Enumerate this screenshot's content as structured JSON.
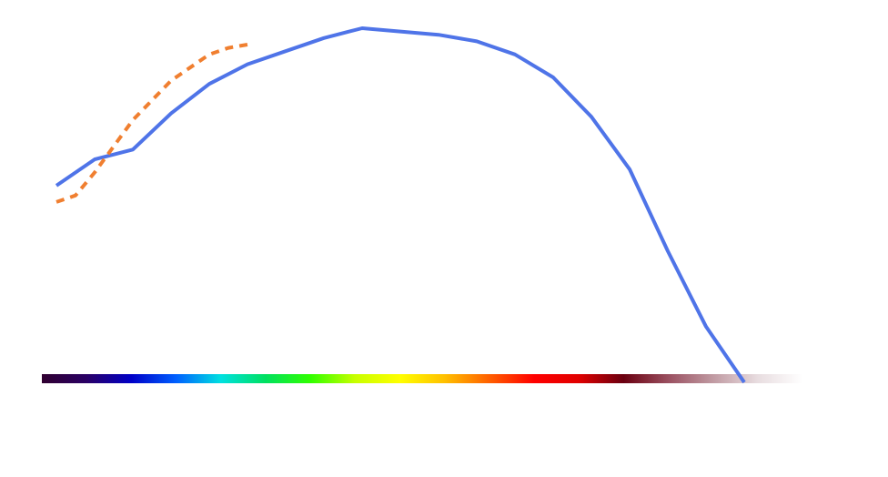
{
  "chart_data": {
    "type": "line",
    "title": "",
    "xlabel": "",
    "ylabel": "",
    "grid": false,
    "legend": "none",
    "colorbar": {
      "present": true,
      "orientation": "horizontal",
      "colors": [
        "#300030",
        "#2a0065",
        "#0000c8",
        "#0060ff",
        "#00e0e0",
        "#00e060",
        "#30ff00",
        "#c8ff00",
        "#ffff00",
        "#ffc000",
        "#ff6000",
        "#ff0000",
        "#e00000",
        "#6a0010",
        "#9a5060",
        "#c09aa2",
        "#e8dde0",
        "#ffffff"
      ]
    },
    "series": [
      {
        "color": "#4f74e8",
        "style": "solid",
        "x": [
          0,
          1,
          2,
          3,
          4,
          5,
          6,
          7,
          8,
          9,
          10,
          11,
          12,
          13,
          14,
          15,
          16,
          17,
          18
        ],
        "y": [
          0.6,
          0.68,
          0.71,
          0.82,
          0.91,
          0.97,
          1.01,
          1.05,
          1.08,
          1.07,
          1.06,
          1.04,
          1.0,
          0.93,
          0.81,
          0.65,
          0.4,
          0.17,
          0.0
        ]
      },
      {
        "color": "#f07f30",
        "style": "dashed",
        "x": [
          0,
          0.5,
          1,
          1.5,
          2,
          2.5,
          3,
          3.5,
          4,
          4.5,
          5
        ],
        "y": [
          0.55,
          0.57,
          0.64,
          0.72,
          0.8,
          0.86,
          0.92,
          0.96,
          1.0,
          1.02,
          1.03
        ]
      }
    ]
  }
}
